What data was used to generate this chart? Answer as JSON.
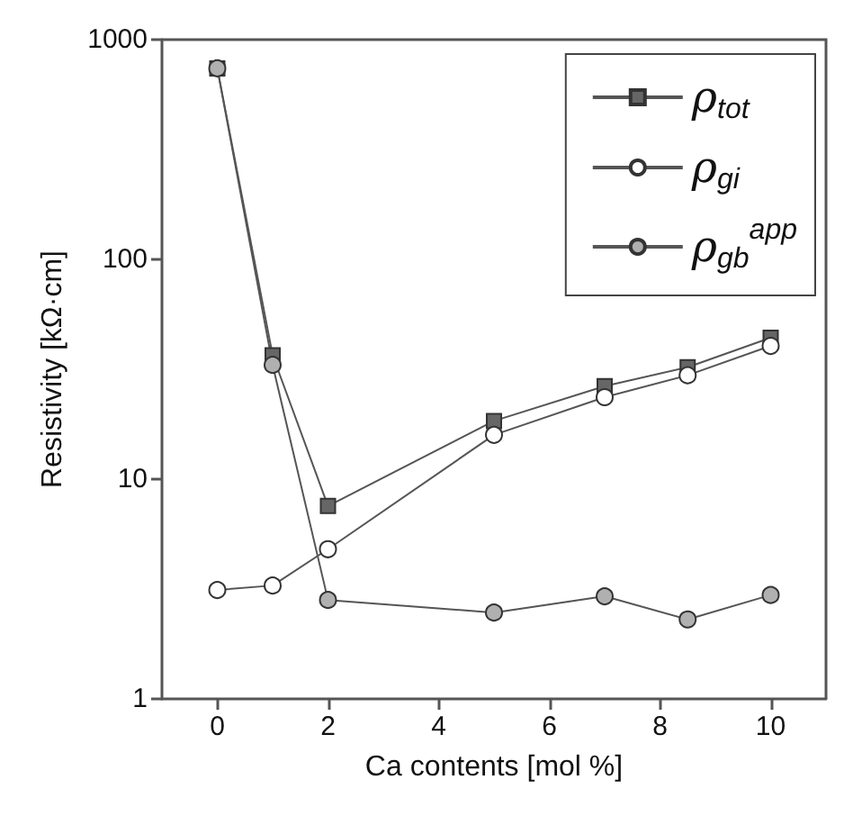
{
  "chart_data": {
    "type": "line",
    "xlabel": "Ca contents [mol %]",
    "ylabel": "Resistivity [kΩ·cm]",
    "log": "y",
    "xlim": [
      -1,
      11
    ],
    "xticks": [
      0,
      2,
      4,
      6,
      8,
      10
    ],
    "ylim": [
      1,
      1000
    ],
    "yticks": [
      1,
      10,
      100,
      1000
    ],
    "grid": false,
    "legend": "top right",
    "line_style": "solid",
    "x": [
      0,
      1,
      2,
      5,
      7,
      8.5,
      10
    ],
    "series": [
      {
        "name": "ρ$_{tot}$",
        "color": "#666666",
        "marker": "square",
        "values": [
          740,
          36.6,
          7.55,
          18.4,
          26.5,
          32.3,
          44
        ]
      },
      {
        "name": "ρ$_{gi}$",
        "color": "#ffffff",
        "marker": "circle",
        "values": [
          3.13,
          3.28,
          4.8,
          15.9,
          23.6,
          29.7,
          40.4
        ]
      },
      {
        "name": "ρ$_{gb}$$^{app}$",
        "color": "#b0b0b0",
        "marker": "circle",
        "values": [
          740,
          33.1,
          2.82,
          2.47,
          2.93,
          2.3,
          2.97
        ]
      }
    ]
  }
}
